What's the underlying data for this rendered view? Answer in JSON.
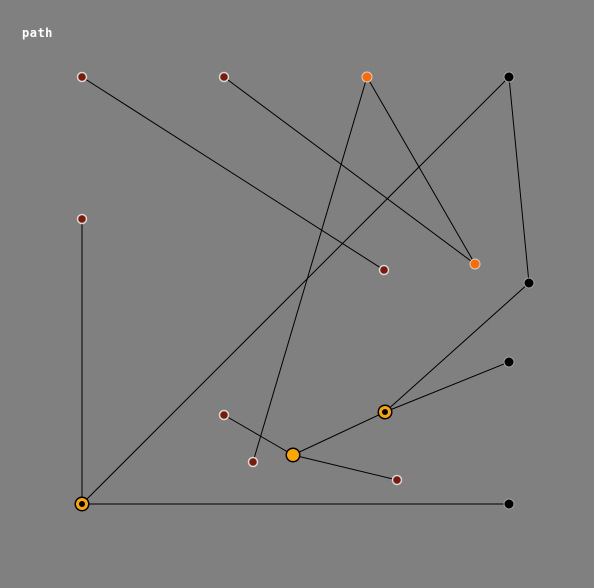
{
  "title": "path",
  "colors": {
    "background": "#808080",
    "edge": "#000000",
    "node_black": "#000000",
    "node_orange": "#ff6a00",
    "node_dark_red": "#7a1a08",
    "node_hub_fill": "#ffa500"
  },
  "nodes": [
    {
      "id": "n1",
      "kind": "dark-red"
    },
    {
      "id": "n2",
      "kind": "dark-red"
    },
    {
      "id": "n3",
      "kind": "orange"
    },
    {
      "id": "n4",
      "kind": "black"
    },
    {
      "id": "n5",
      "kind": "dark-red"
    },
    {
      "id": "n6",
      "kind": "dark-red"
    },
    {
      "id": "n7",
      "kind": "orange"
    },
    {
      "id": "n8",
      "kind": "black"
    },
    {
      "id": "n9",
      "kind": "black"
    },
    {
      "id": "n10",
      "kind": "hub"
    },
    {
      "id": "n11",
      "kind": "dark-red"
    },
    {
      "id": "n12",
      "kind": "hub"
    },
    {
      "id": "n13",
      "kind": "dark-red"
    },
    {
      "id": "n14",
      "kind": "dark-red"
    },
    {
      "id": "n15",
      "kind": "hub"
    },
    {
      "id": "n16",
      "kind": "black"
    }
  ],
  "edges": [
    [
      "n1",
      "n6"
    ],
    [
      "n2",
      "n7"
    ],
    [
      "n3",
      "n7"
    ],
    [
      "n3",
      "n13"
    ],
    [
      "n4",
      "n8"
    ],
    [
      "n4",
      "n15"
    ],
    [
      "n5",
      "n15"
    ],
    [
      "n8",
      "n10"
    ],
    [
      "n9",
      "n10"
    ],
    [
      "n10",
      "n12"
    ],
    [
      "n11",
      "n12"
    ],
    [
      "n12",
      "n14"
    ],
    [
      "n15",
      "n16"
    ]
  ]
}
